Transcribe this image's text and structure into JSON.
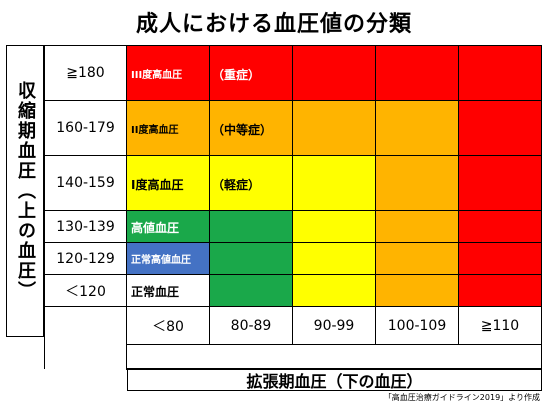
{
  "chart_data": {
    "type": "heatmap",
    "title": "成人における血圧値の分類",
    "ylabel": "収縮期血圧（上の血圧）",
    "xlabel": "拡張期血圧（下の血圧）",
    "rows": [
      "≧180",
      "160-179",
      "140-159",
      "130-139",
      "120-129",
      "＜120"
    ],
    "columns": [
      "＜80",
      "80-89",
      "90-99",
      "100-109",
      "≧110"
    ],
    "cells": [
      [
        "red",
        "red",
        "red",
        "red",
        "red"
      ],
      [
        "orange",
        "orange",
        "orange",
        "orange",
        "red"
      ],
      [
        "yellow",
        "yellow",
        "yellow",
        "orange",
        "red"
      ],
      [
        "green",
        "green",
        "yellow",
        "orange",
        "red"
      ],
      [
        "blue",
        "green",
        "yellow",
        "orange",
        "red"
      ],
      [
        "white",
        "green",
        "yellow",
        "orange",
        "red"
      ]
    ],
    "colors": {
      "red": "#ff0000",
      "orange": "#ffb400",
      "yellow": "#ffff00",
      "green": "#1aa84a",
      "blue": "#4472c4",
      "white": "#ffffff"
    },
    "annotations": [
      {
        "row": 0,
        "text": "III度高血圧",
        "sub": "（重症）",
        "color": "white"
      },
      {
        "row": 1,
        "text": "II度高血圧",
        "sub": "（中等症）",
        "color": "black"
      },
      {
        "row": 2,
        "text": "I度高血圧",
        "sub": "（軽症）",
        "color": "black"
      },
      {
        "row": 3,
        "text": "高値血圧",
        "color": "white"
      },
      {
        "row": 4,
        "text": "正常高値血圧",
        "color": "white"
      },
      {
        "row": 5,
        "text": "正常血圧",
        "color": "black"
      }
    ]
  },
  "source_note": "「高血圧治療ガイドライン2019」より作成"
}
